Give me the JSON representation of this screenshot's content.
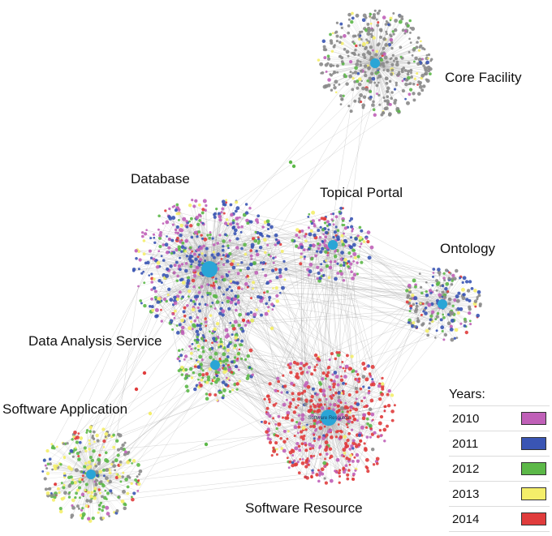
{
  "clusters": [
    {
      "id": "core-facility",
      "label": "Core Facility",
      "hub_text": "",
      "mix": [
        0.05,
        0.05,
        0.08,
        0.05,
        0.02
      ]
    },
    {
      "id": "database",
      "label": "Database",
      "hub_text": "",
      "mix": [
        0.3,
        0.4,
        0.15,
        0.1,
        0.05
      ]
    },
    {
      "id": "topical-portal",
      "label": "Topical Portal",
      "hub_text": "",
      "mix": [
        0.3,
        0.35,
        0.15,
        0.1,
        0.1
      ]
    },
    {
      "id": "ontology",
      "label": "Ontology",
      "hub_text": "",
      "mix": [
        0.1,
        0.25,
        0.15,
        0.05,
        0.05
      ]
    },
    {
      "id": "data-analysis-service",
      "label": "Data Analysis Service",
      "hub_text": "",
      "mix": [
        0.15,
        0.15,
        0.45,
        0.15,
        0.1
      ]
    },
    {
      "id": "software-application",
      "label": "Software Application",
      "hub_text": "",
      "mix": [
        0.05,
        0.05,
        0.35,
        0.3,
        0.05
      ]
    },
    {
      "id": "software-resource",
      "label": "Software Resource",
      "hub_text": "Software Resource",
      "mix": [
        0.25,
        0.05,
        0.05,
        0.02,
        0.6
      ]
    }
  ],
  "legend": {
    "title": "Years:",
    "entries": [
      {
        "year": "2010",
        "color": "#c060b8"
      },
      {
        "year": "2011",
        "color": "#3a55b4"
      },
      {
        "year": "2012",
        "color": "#5cb848"
      },
      {
        "year": "2013",
        "color": "#f4ee6a"
      },
      {
        "year": "2014",
        "color": "#e03c3c"
      }
    ]
  },
  "colors": {
    "hub": "#2aa5d6",
    "edge": "#9a9a9a",
    "node_grey": "#8a8a8a"
  }
}
